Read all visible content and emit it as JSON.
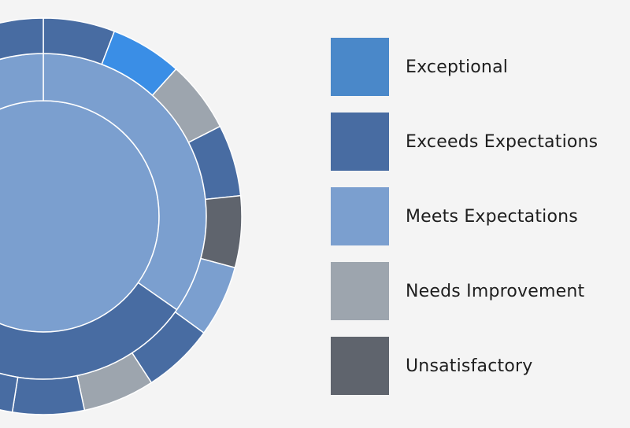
{
  "colors": {
    "Exceptional": "#4a88c9",
    "Exceeds Expectations": "#486ca2",
    "Meets Expectations": "#7b9fcf",
    "Needs Improvement": "#9da5ae",
    "Unsatisfactory": "#5f646d",
    "Exceptional-highlight": "#3a8ee6"
  },
  "chart_data": {
    "type": "donut",
    "legend": [
      "Exceptional",
      "Exceeds Expectations",
      "Meets Expectations",
      "Needs Improvement",
      "Unsatisfactory"
    ],
    "legend_position": "right",
    "rings": [
      {
        "ring": "inner",
        "slices": [
          {
            "category": "Meets Expectations",
            "start_deg": 0,
            "end_deg": 125
          },
          {
            "category": "Exceeds Expectations",
            "start_deg": 125,
            "end_deg": 235
          },
          {
            "category": "Meets Expectations",
            "start_deg": 235,
            "end_deg": 360
          }
        ]
      },
      {
        "ring": "outer",
        "slices": [
          {
            "category": "Exceeds Expectations",
            "start_deg": 0,
            "end_deg": 21
          },
          {
            "category": "Exceptional",
            "start_deg": 21,
            "end_deg": 42,
            "highlight": true
          },
          {
            "category": "Needs Improvement",
            "start_deg": 42,
            "end_deg": 63
          },
          {
            "category": "Exceeds Expectations",
            "start_deg": 63,
            "end_deg": 84
          },
          {
            "category": "Unsatisfactory",
            "start_deg": 84,
            "end_deg": 105
          },
          {
            "category": "Meets Expectations",
            "start_deg": 105,
            "end_deg": 126
          },
          {
            "category": "Exceeds Expectations",
            "start_deg": 126,
            "end_deg": 147
          },
          {
            "category": "Needs Improvement",
            "start_deg": 147,
            "end_deg": 168
          },
          {
            "category": "Exceeds Expectations",
            "start_deg": 168,
            "end_deg": 189
          },
          {
            "category": "Exceeds Expectations",
            "start_deg": 189,
            "end_deg": 330
          },
          {
            "category": "Exceeds Expectations",
            "start_deg": 330,
            "end_deg": 360
          }
        ]
      }
    ]
  }
}
